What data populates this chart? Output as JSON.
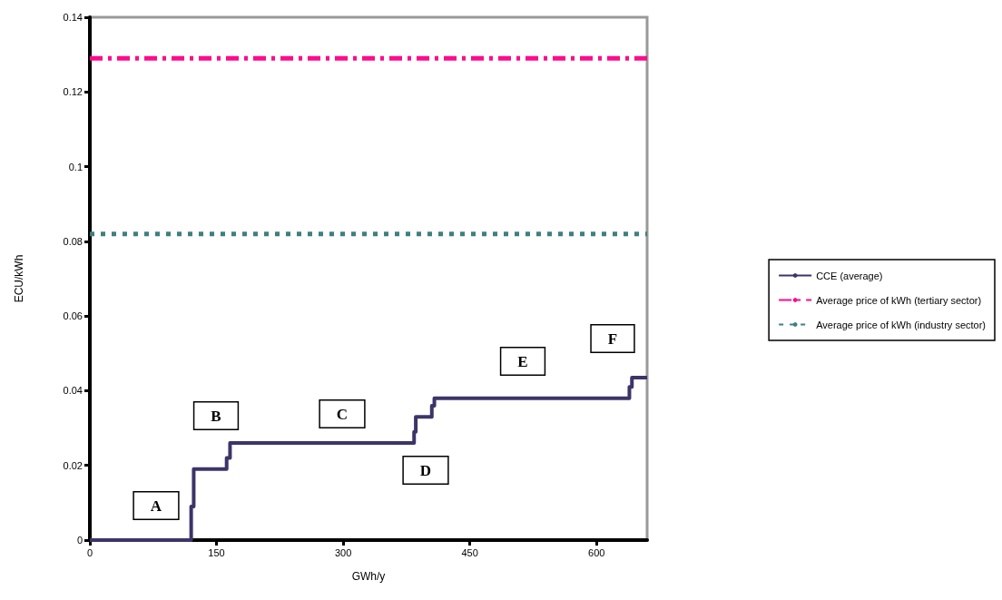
{
  "chart_data": {
    "type": "line",
    "xlabel": "GWh/y",
    "ylabel": "ECU/kWh",
    "xlim": [
      0,
      660
    ],
    "xticks": [
      0,
      150,
      300,
      450,
      600
    ],
    "ylim": [
      0,
      0.14
    ],
    "yticks": [
      0,
      0.02,
      0.04,
      0.06,
      0.08,
      0.1,
      0.12,
      0.14
    ],
    "grid": false,
    "legend": "right",
    "marker": "none",
    "series": [
      {
        "name": "CCE (average)",
        "color": "#3d3567",
        "line_style": "solid",
        "x": [
          0,
          120,
          120,
          123,
          123,
          162,
          162,
          166,
          166,
          384,
          384,
          386,
          386,
          405,
          405,
          408,
          408,
          639,
          639,
          642,
          642,
          660
        ],
        "values": [
          0,
          0,
          0.009,
          0.009,
          0.019,
          0.019,
          0.022,
          0.022,
          0.026,
          0.026,
          0.029,
          0.029,
          0.033,
          0.033,
          0.036,
          0.036,
          0.038,
          0.038,
          0.041,
          0.041,
          0.0435,
          0.0435
        ]
      },
      {
        "name": "Average price of kWh (tertiary sector)",
        "color": "#ff0a8c",
        "line_style": "dashed",
        "x": [
          0,
          660
        ],
        "values": [
          0.129,
          0.129
        ]
      },
      {
        "name": "Average price of kWh (industry sector)",
        "color": "#3f7f7f",
        "line_style": "dotted",
        "x": [
          0,
          660
        ],
        "values": [
          0.082,
          0.082
        ]
      }
    ],
    "annotations": [
      "A",
      "B",
      "C",
      "D",
      "E",
      "F"
    ]
  }
}
